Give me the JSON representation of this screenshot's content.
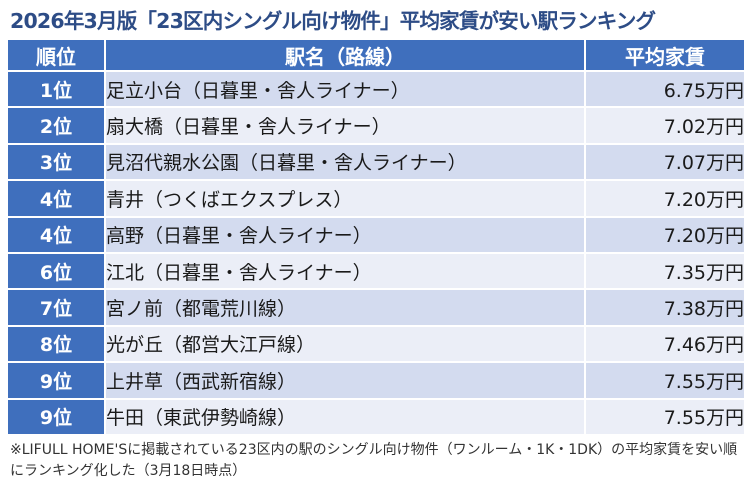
{
  "title": "2026年3月版「23区内シングル向け物件」平均家賃が安い駅ランキング",
  "table": {
    "headers": {
      "rank": "順位",
      "station": "駅名（路線）",
      "rent": "平均家賃"
    },
    "rows": [
      {
        "rank": "1位",
        "station": "足立小台（日暮里・舎人ライナー）",
        "rent": "6.75万円"
      },
      {
        "rank": "2位",
        "station": "扇大橋（日暮里・舎人ライナー）",
        "rent": "7.02万円"
      },
      {
        "rank": "3位",
        "station": "見沼代親水公園（日暮里・舎人ライナー）",
        "rent": "7.07万円"
      },
      {
        "rank": "4位",
        "station": "青井（つくばエクスプレス）",
        "rent": "7.20万円"
      },
      {
        "rank": "4位",
        "station": "高野（日暮里・舎人ライナー）",
        "rent": "7.20万円"
      },
      {
        "rank": "6位",
        "station": "江北（日暮里・舎人ライナー）",
        "rent": "7.35万円"
      },
      {
        "rank": "7位",
        "station": "宮ノ前（都電荒川線）",
        "rent": "7.38万円"
      },
      {
        "rank": "8位",
        "station": "光が丘（都営大江戸線）",
        "rent": "7.46万円"
      },
      {
        "rank": "9位",
        "station": "上井草（西武新宿線）",
        "rent": "7.55万円"
      },
      {
        "rank": "9位",
        "station": "牛田（東武伊勢崎線）",
        "rent": "7.55万円"
      }
    ]
  },
  "note": "※LIFULL HOME'Sに掲載されている23区内の駅のシングル向け物件（ワンルーム・1K・1DK）の平均家賃を安い順にランキング化した（3月18日時点）",
  "colors": {
    "title": "#2d4c86",
    "header_bg": "#3f6fbd",
    "row_odd": "#d3dbef",
    "row_even": "#ebeef7"
  }
}
